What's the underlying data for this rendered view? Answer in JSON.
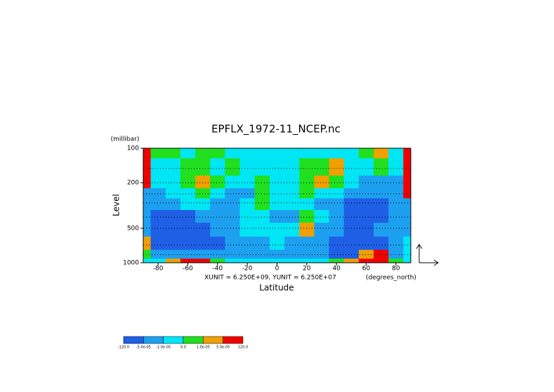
{
  "chart_data": {
    "type": "contour",
    "title": "EPFLX_1972-11_NCEP.nc",
    "x_label": "Latitude",
    "x_unit": "(degrees_north)",
    "y_label": "Level",
    "y_unit": "(millibar)",
    "annotation": "XUNIT = 6.250E+09, YUNIT = 6.250E+07",
    "xlim": [
      -90,
      90
    ],
    "ylim": [
      1000,
      100
    ],
    "y_log": true,
    "xticks": [
      -80,
      -60,
      -40,
      -20,
      0,
      20,
      40,
      60,
      80
    ],
    "yticks": [
      100,
      200,
      500,
      1000
    ],
    "x": [
      -90,
      -80,
      -70,
      -60,
      -50,
      -40,
      -30,
      -20,
      -10,
      0,
      10,
      20,
      30,
      40,
      50,
      60,
      70,
      80,
      90
    ],
    "y": [
      100,
      150,
      200,
      250,
      300,
      400,
      500,
      700,
      850,
      1000
    ],
    "values": [
      [
        0.0001,
        5e-06,
        5e-06,
        -5e-06,
        5e-06,
        5e-06,
        -5e-06,
        -5e-06,
        -5e-06,
        -5e-06,
        -5e-06,
        -5e-06,
        -5e-06,
        -5e-06,
        -5e-06,
        5e-06,
        3e-05,
        -5e-06,
        0.0001
      ],
      [
        0.0001,
        -5e-06,
        -5e-06,
        5e-06,
        5e-06,
        -5e-06,
        5e-06,
        -5e-06,
        -5e-06,
        -5e-06,
        -5e-06,
        5e-06,
        5e-06,
        3e-05,
        -5e-06,
        -5e-06,
        5e-06,
        -5e-06,
        0.0001
      ],
      [
        0.0001,
        -5e-06,
        -5e-06,
        5e-06,
        3e-05,
        5e-06,
        -5e-06,
        -5e-06,
        5e-06,
        -5e-06,
        -5e-06,
        5e-06,
        3e-05,
        5e-06,
        -5e-06,
        -3e-05,
        -3e-05,
        -3e-05,
        0.0001
      ],
      [
        -3e-05,
        -3e-05,
        -5e-06,
        -5e-06,
        5e-06,
        -5e-06,
        -3e-05,
        -3e-05,
        5e-06,
        -5e-06,
        -5e-06,
        5e-06,
        -5e-06,
        -5e-06,
        -3e-05,
        -3e-05,
        -3e-05,
        -3e-05,
        0.0001
      ],
      [
        -3e-05,
        -3e-05,
        -3e-05,
        -5e-06,
        -5e-06,
        -3e-05,
        -3e-05,
        -5e-06,
        5e-06,
        -5e-06,
        -5e-06,
        -5e-06,
        -3e-05,
        -3e-05,
        -0.0001,
        -0.0001,
        -0.0001,
        -3e-05,
        -3e-05
      ],
      [
        -3e-05,
        -0.0001,
        -0.0001,
        -0.0001,
        -3e-05,
        -3e-05,
        -3e-05,
        -5e-06,
        -5e-06,
        -3e-05,
        -3e-05,
        5e-06,
        -5e-06,
        -3e-05,
        -0.0001,
        -0.0001,
        -0.0001,
        -3e-05,
        -3e-05
      ],
      [
        -3e-05,
        -0.0001,
        -0.0001,
        -0.0001,
        -0.0001,
        -3e-05,
        -3e-05,
        -5e-06,
        -5e-06,
        -5e-06,
        -5e-06,
        3e-05,
        -3e-05,
        -3e-05,
        -0.0001,
        -0.0001,
        -3e-05,
        -3e-05,
        -3e-05
      ],
      [
        3e-05,
        -0.0001,
        -0.0001,
        -0.0001,
        -0.0001,
        -0.0001,
        -3e-05,
        -3e-05,
        -3e-05,
        -5e-06,
        -3e-05,
        -3e-05,
        -3e-05,
        -0.0001,
        -0.0001,
        -0.0001,
        -0.0001,
        -3e-05,
        -5e-06
      ],
      [
        5e-06,
        -3e-05,
        -3e-05,
        -3e-05,
        -3e-05,
        -3e-05,
        -3e-05,
        -3e-05,
        -3e-05,
        -3e-05,
        -3e-05,
        -3e-05,
        -3e-05,
        -0.0001,
        -0.0001,
        3e-05,
        0.0001,
        -3e-05,
        -5e-06
      ],
      [
        -5e-06,
        -5e-06,
        3e-05,
        0.0001,
        0.0001,
        5e-06,
        -5e-06,
        -5e-06,
        -5e-06,
        -5e-06,
        -5e-06,
        -5e-06,
        -5e-06,
        5e-06,
        3e-05,
        0.0001,
        0.0001,
        5e-06,
        -5e-06
      ]
    ],
    "levels": [
      {
        "value": -120,
        "label": "-120.0"
      },
      {
        "value": -5e-05,
        "label": "-5.0e-05"
      },
      {
        "value": -1e-05,
        "label": "-1.0e-05"
      },
      {
        "value": 0,
        "label": "0.0"
      },
      {
        "value": 1e-05,
        "label": "1.0e-05"
      },
      {
        "value": 5e-05,
        "label": "5.0e-05"
      },
      {
        "value": 120,
        "label": "120.0"
      }
    ],
    "colors": [
      "#1e5fe6",
      "#1ea0f0",
      "#00e6f5",
      "#20e020",
      "#f0a000",
      "#f00000"
    ],
    "grid": true
  }
}
